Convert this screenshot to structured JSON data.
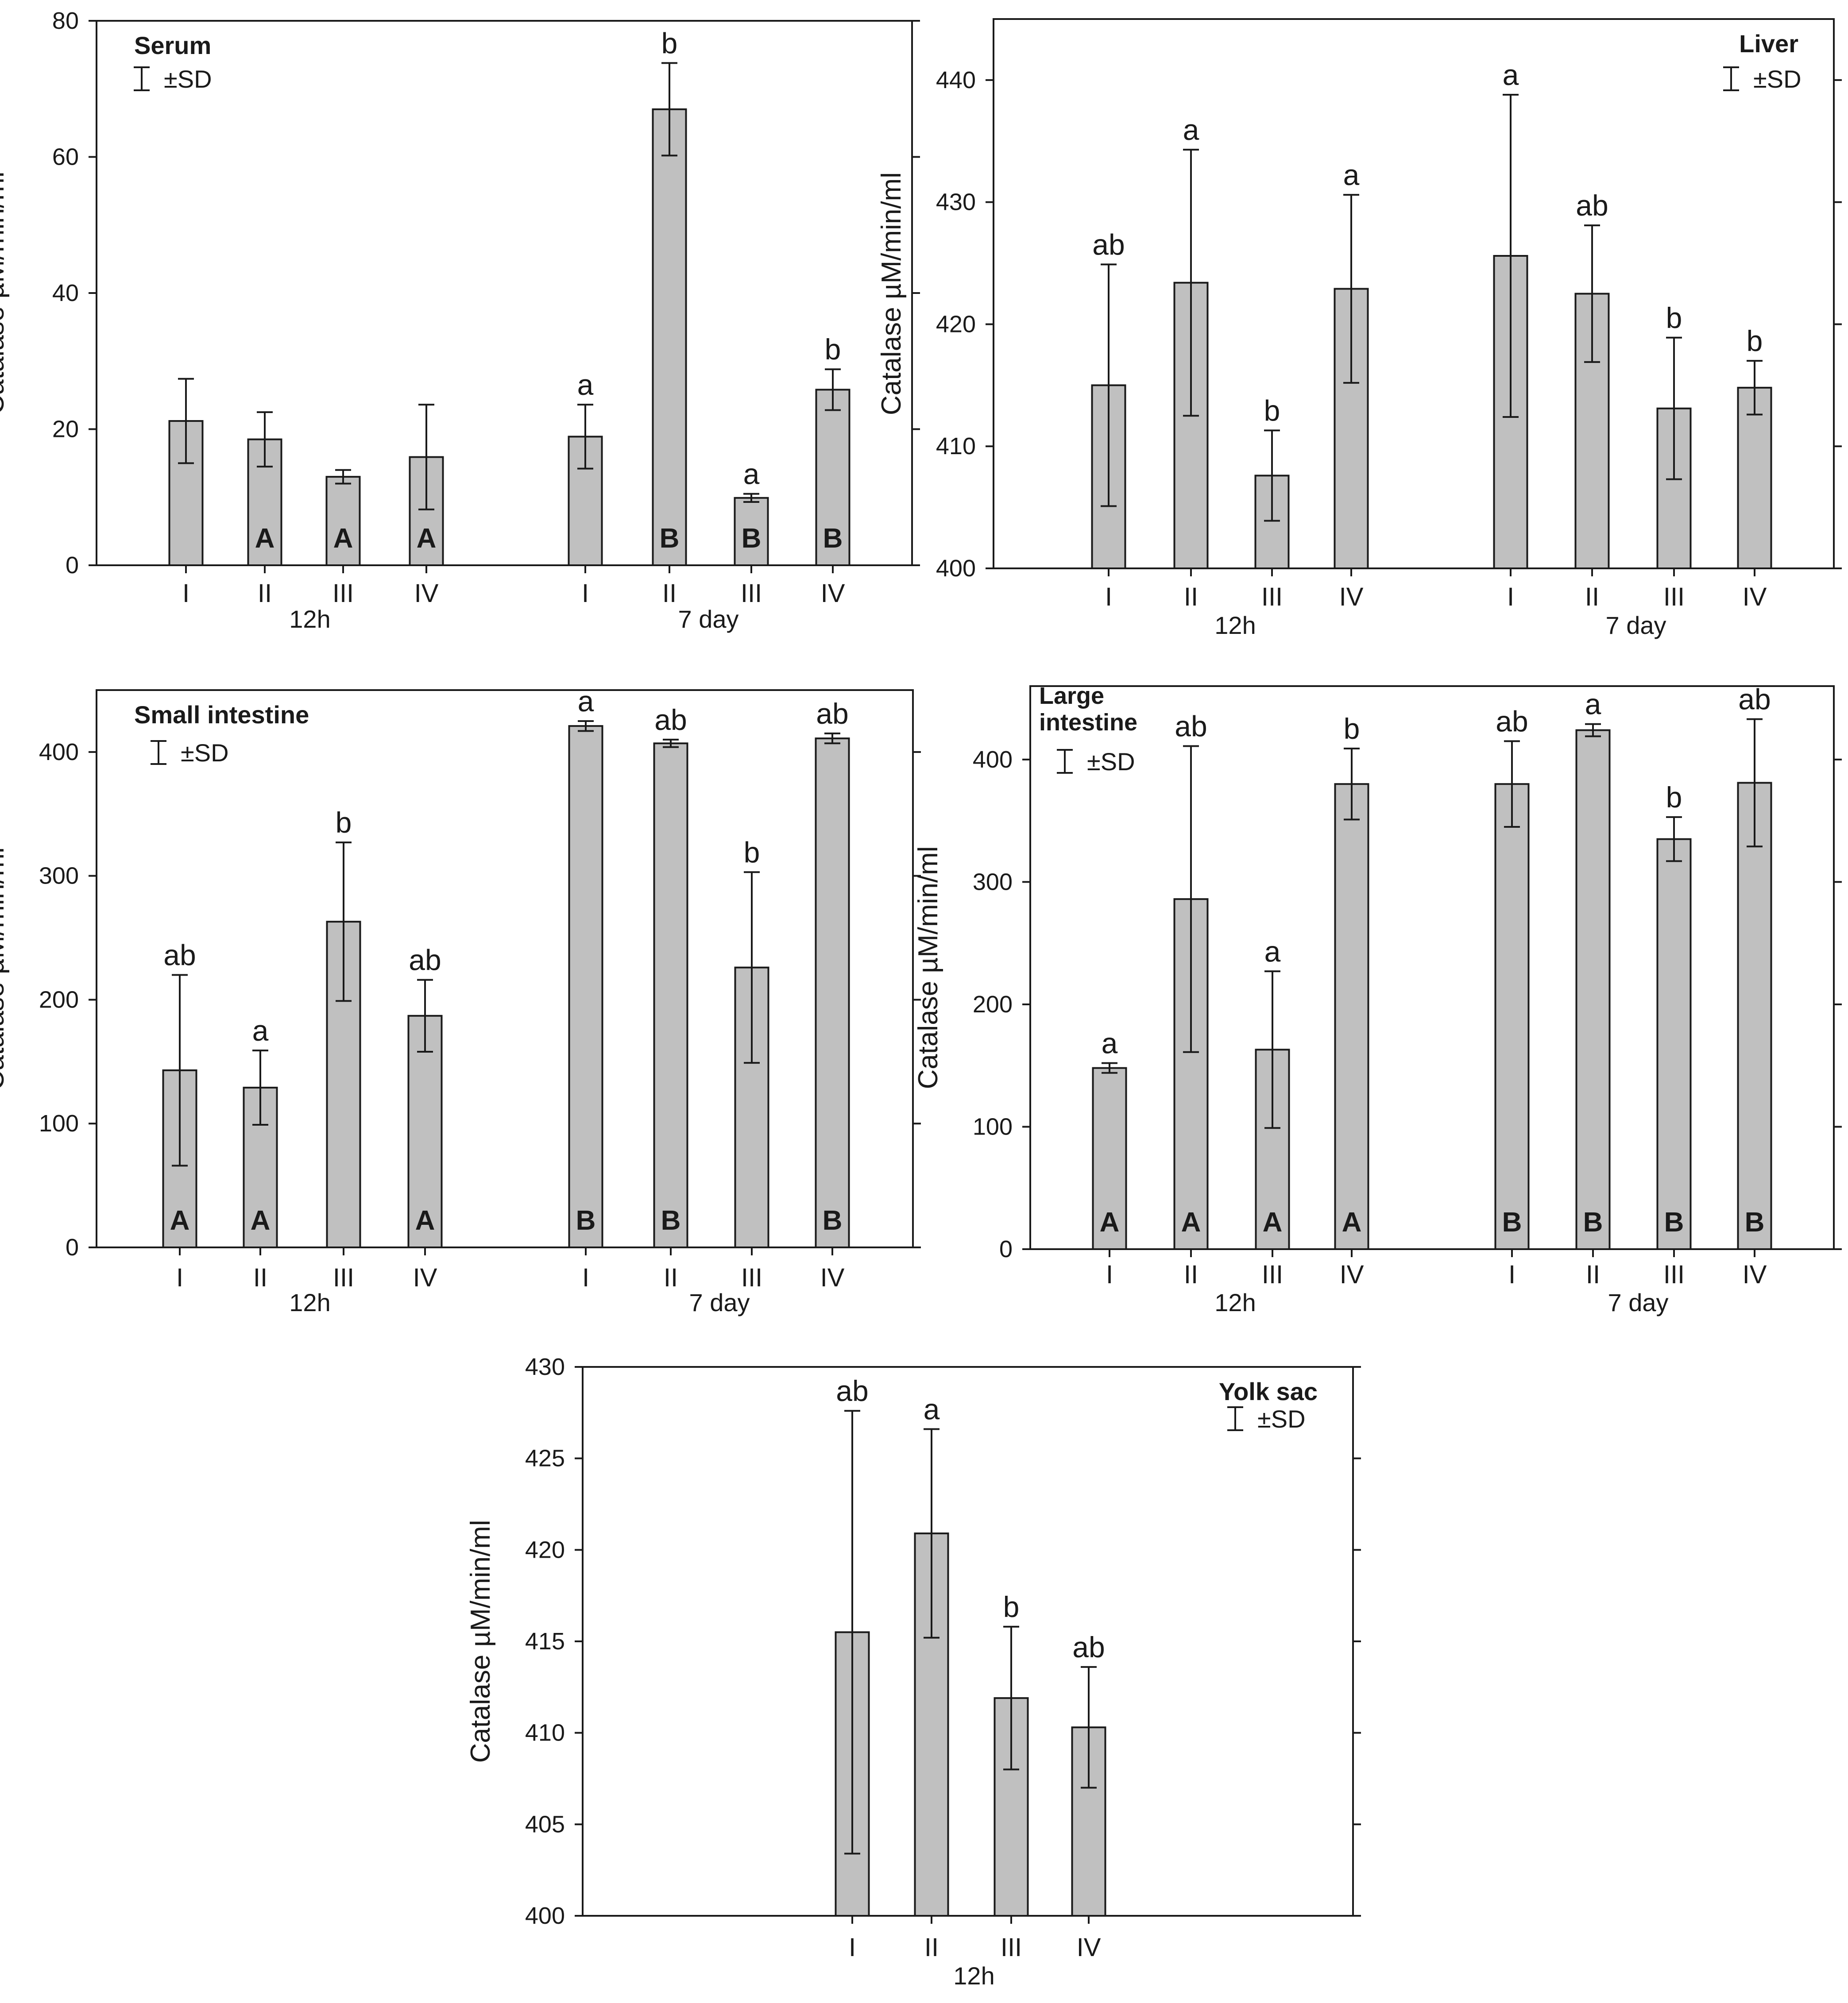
{
  "colors": {
    "bar_fill": "#c0c0c0",
    "stroke": "#1a1a1a",
    "background": "#ffffff"
  },
  "sd_legend": "±SD",
  "chart_data": [
    {
      "type": "bar",
      "title": "Serum",
      "ylabel": "Catalase µM/min/ml",
      "ylim": [
        0,
        80
      ],
      "yticks": [
        "0",
        "20",
        "40",
        "60",
        "80"
      ],
      "ytick_values": [
        0,
        20,
        40,
        60,
        80
      ],
      "legend_position": "top-left",
      "groups": [
        {
          "label": "12h",
          "categories": [
            "I",
            "II",
            "III",
            "IV"
          ],
          "values": [
            21.2,
            18.5,
            13.0,
            15.9
          ],
          "sd": [
            6.2,
            4.0,
            1.0,
            7.7
          ],
          "letters_top": [
            "",
            "",
            "",
            ""
          ],
          "letters_bottom": [
            "",
            "A",
            "A",
            "A"
          ]
        },
        {
          "label": "7 day",
          "categories": [
            "I",
            "II",
            "III",
            "IV"
          ],
          "values": [
            18.9,
            67.0,
            9.9,
            25.8
          ],
          "sd": [
            4.7,
            6.8,
            0.6,
            3.0
          ],
          "letters_top": [
            "a",
            "b",
            "a",
            "b"
          ],
          "letters_bottom": [
            "",
            "B",
            "B",
            "B"
          ]
        }
      ]
    },
    {
      "type": "bar",
      "title": "Liver",
      "ylabel": "Catalase µM/min/ml",
      "ylim": [
        400,
        445
      ],
      "yticks": [
        "400",
        "410",
        "420",
        "430",
        "440"
      ],
      "ytick_values": [
        400,
        410,
        420,
        430,
        440
      ],
      "legend_position": "top-right",
      "groups": [
        {
          "label": "12h",
          "categories": [
            "I",
            "II",
            "III",
            "IV"
          ],
          "values": [
            415.0,
            423.4,
            407.6,
            422.9
          ],
          "sd": [
            9.9,
            10.9,
            3.7,
            7.7
          ],
          "letters_top": [
            "ab",
            "a",
            "b",
            "a"
          ],
          "letters_bottom": [
            "",
            "",
            "",
            ""
          ]
        },
        {
          "label": "7 day",
          "categories": [
            "I",
            "II",
            "III",
            "IV"
          ],
          "values": [
            425.6,
            422.5,
            413.1,
            414.8
          ],
          "sd": [
            13.2,
            5.6,
            5.8,
            2.2
          ],
          "letters_top": [
            "a",
            "ab",
            "b",
            "b"
          ],
          "letters_bottom": [
            "",
            "",
            "",
            ""
          ]
        }
      ]
    },
    {
      "type": "bar",
      "title": "Small intestine",
      "ylabel": "Catalase µM/min/ml",
      "ylim": [
        0,
        450
      ],
      "yticks": [
        "0",
        "100",
        "200",
        "300",
        "400"
      ],
      "ytick_values": [
        0,
        100,
        200,
        300,
        400
      ],
      "legend_position": "top-left",
      "groups": [
        {
          "label": "12h",
          "categories": [
            "I",
            "II",
            "III",
            "IV"
          ],
          "values": [
            143,
            129,
            263,
            187
          ],
          "sd": [
            77,
            30,
            64,
            29
          ],
          "letters_top": [
            "ab",
            "a",
            "b",
            "ab"
          ],
          "letters_bottom": [
            "A",
            "A",
            "",
            "A"
          ]
        },
        {
          "label": "7 day",
          "categories": [
            "I",
            "II",
            "III",
            "IV"
          ],
          "values": [
            421,
            407,
            226,
            411
          ],
          "sd": [
            4,
            3,
            77,
            4
          ],
          "letters_top": [
            "a",
            "ab",
            "b",
            "ab"
          ],
          "letters_bottom": [
            "B",
            "B",
            "",
            "B"
          ]
        }
      ]
    },
    {
      "type": "bar",
      "title": "Large intestine",
      "title_lines": [
        "Large",
        "intestine"
      ],
      "ylabel": "Catalase µM/min/ml",
      "ylim": [
        0,
        460
      ],
      "yticks": [
        "0",
        "100",
        "200",
        "300",
        "400"
      ],
      "ytick_values": [
        0,
        100,
        200,
        300,
        400
      ],
      "legend_position": "top-left",
      "groups": [
        {
          "label": "12h",
          "categories": [
            "I",
            "II",
            "III",
            "IV"
          ],
          "values": [
            148,
            286,
            163,
            380
          ],
          "sd": [
            4,
            125,
            64,
            29
          ],
          "letters_top": [
            "a",
            "ab",
            "a",
            "b"
          ],
          "letters_bottom": [
            "A",
            "A",
            "A",
            "A"
          ]
        },
        {
          "label": "7 day",
          "categories": [
            "I",
            "II",
            "III",
            "IV"
          ],
          "values": [
            380,
            424,
            335,
            381
          ],
          "sd": [
            35,
            5,
            18,
            52
          ],
          "letters_top": [
            "ab",
            "a",
            "b",
            "ab"
          ],
          "letters_bottom": [
            "B",
            "B",
            "B",
            "B"
          ]
        }
      ]
    },
    {
      "type": "bar",
      "title": "Yolk sac",
      "ylabel": "Catalase µM/min/ml",
      "ylim": [
        400,
        430
      ],
      "yticks": [
        "400",
        "405",
        "410",
        "415",
        "420",
        "425",
        "430"
      ],
      "ytick_values": [
        400,
        405,
        410,
        415,
        420,
        425,
        430
      ],
      "legend_position": "top-right",
      "groups": [
        {
          "label": "12h",
          "categories": [
            "I",
            "II",
            "III",
            "IV"
          ],
          "values": [
            415.5,
            420.9,
            411.9,
            410.3
          ],
          "sd": [
            12.1,
            5.7,
            3.9,
            3.3
          ],
          "letters_top": [
            "ab",
            "a",
            "b",
            "ab"
          ],
          "letters_bottom": [
            "",
            "",
            "",
            ""
          ]
        }
      ]
    }
  ]
}
